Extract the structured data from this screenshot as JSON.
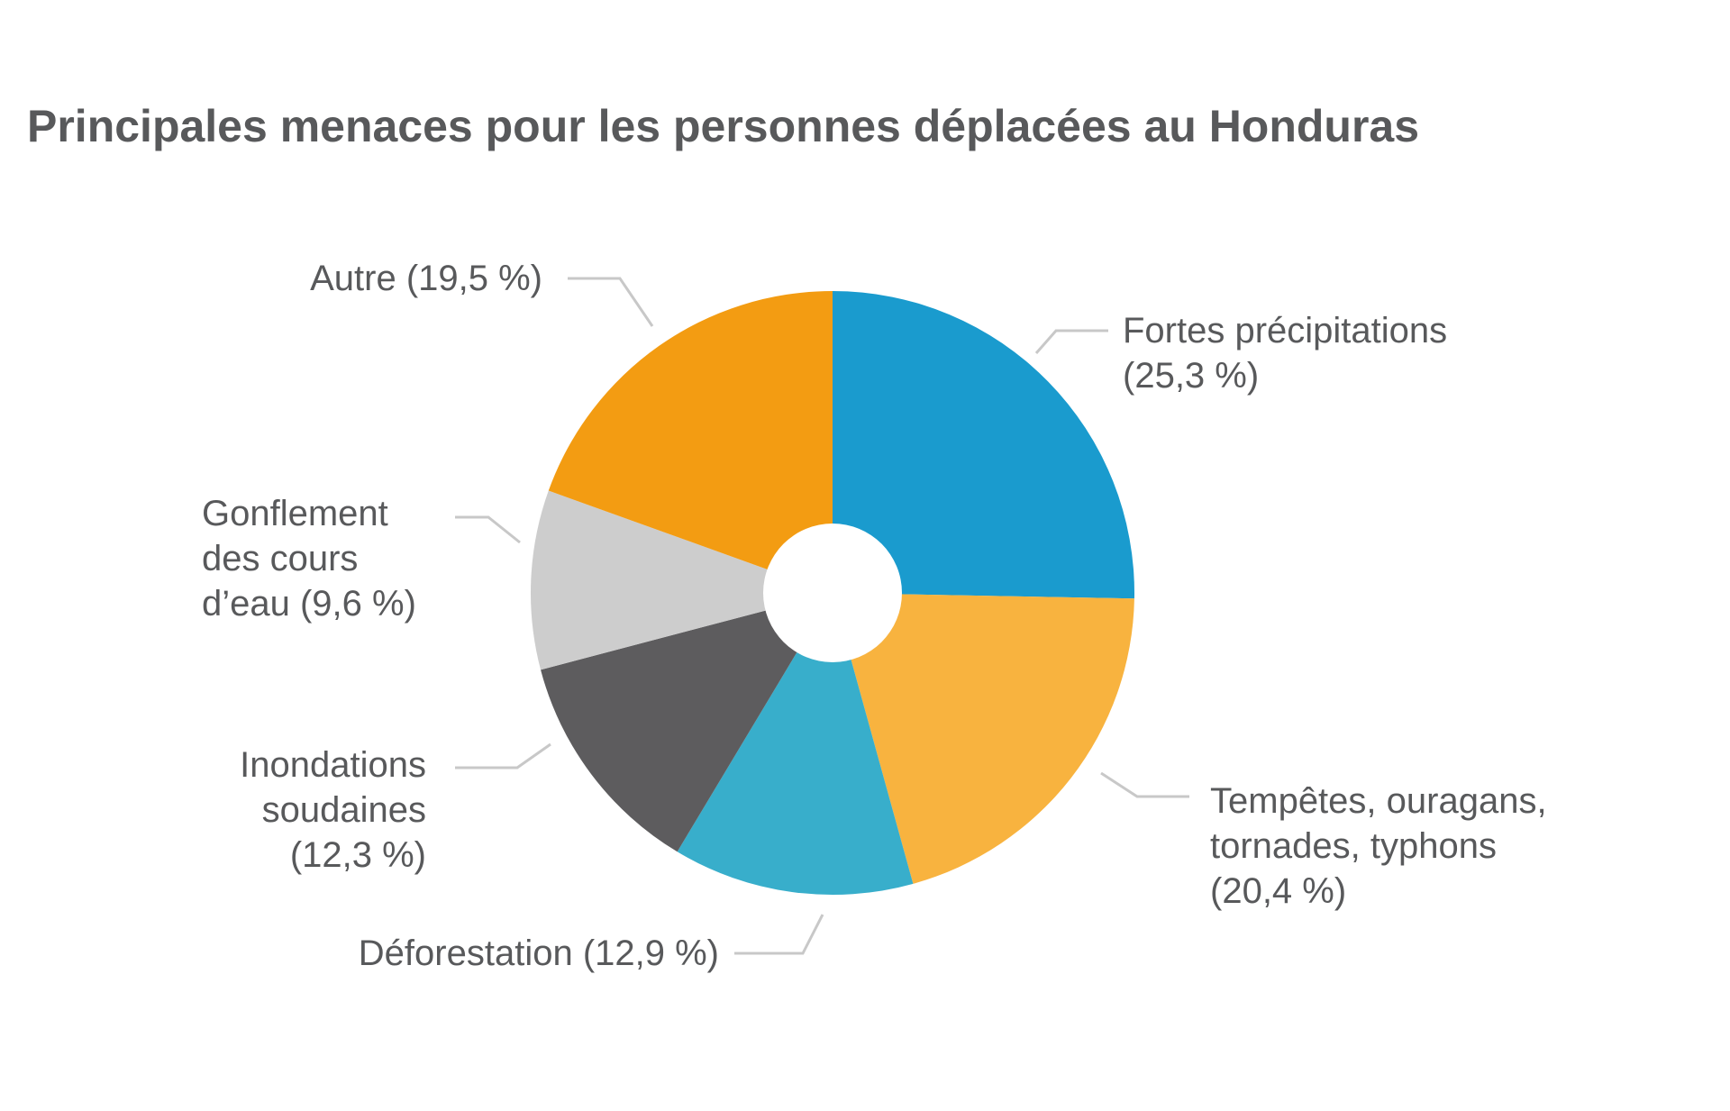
{
  "chart_data": {
    "type": "pie",
    "title": "Principales menaces pour les personnes déplacées au Honduras",
    "slices": [
      {
        "label": [
          "Fortes précipitations",
          "(25,3 %)"
        ],
        "value": 25.3,
        "color": "#1a9bce"
      },
      {
        "label": [
          "Tempêtes, ouragans,",
          "tornades, typhons",
          "(20,4 %)"
        ],
        "value": 20.4,
        "color": "#f8b33f"
      },
      {
        "label": [
          "Déforestation (12,9 %)"
        ],
        "value": 12.9,
        "color": "#38aecb"
      },
      {
        "label": [
          "Inondations",
          "soudaines",
          "(12,3 %)"
        ],
        "value": 12.3,
        "color": "#5d5c5e"
      },
      {
        "label": [
          "Gonflement",
          "des cours",
          "d’eau (9,6 %)"
        ],
        "value": 9.6,
        "color": "#cdcdcd"
      },
      {
        "label": [
          "Autre (19,5 %)"
        ],
        "value": 19.5,
        "color": "#f39c12"
      }
    ],
    "start": "12 o'clock",
    "direction": "clockwise",
    "legend": "none",
    "center_hole": true
  }
}
